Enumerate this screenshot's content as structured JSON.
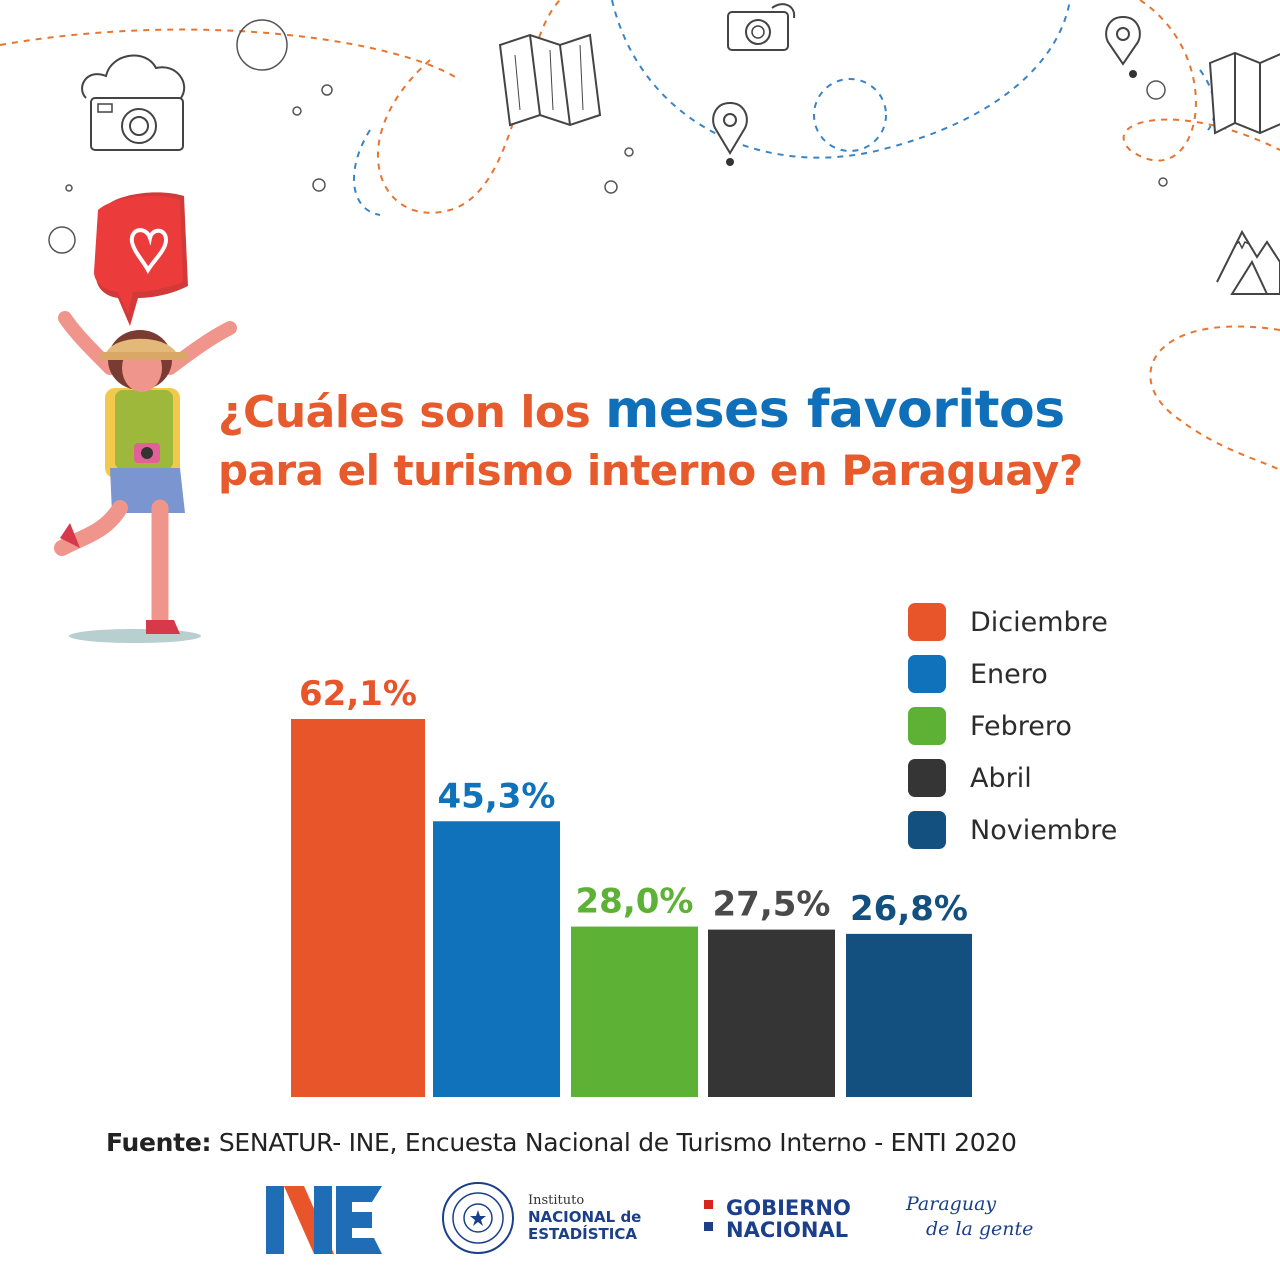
{
  "title": {
    "line1_prefix": "¿Cuáles son los ",
    "line1_highlight": "meses favoritos",
    "line2": "para el turismo interno en Paraguay?"
  },
  "chart_data": {
    "type": "bar",
    "categories": [
      "Diciembre",
      "Enero",
      "Febrero",
      "Abril",
      "Noviembre"
    ],
    "values": [
      62.1,
      45.3,
      28.0,
      27.5,
      26.8
    ],
    "data_labels": [
      "62,1%",
      "45,3%",
      "28,0%",
      "27,5%",
      "26,8%"
    ],
    "colors": [
      "#e8552a",
      "#0f72bb",
      "#5db134",
      "#353535",
      "#13507f"
    ],
    "label_colors": [
      "#e8552a",
      "#0f72bb",
      "#5db134",
      "#4a4a4a",
      "#13507f"
    ],
    "legend_position": "top-right",
    "grid": false,
    "ylim": [
      0,
      62.1
    ]
  },
  "source": {
    "label": "Fuente:",
    "text": " SENATUR- INE, Encuesta Nacional de Turismo Interno - ENTI 2020"
  },
  "logos": {
    "ine_seal_text": [
      "Instituto",
      "NACIONAL de",
      "ESTADÍSTICA"
    ],
    "gobierno": [
      "GOBIERNO",
      "NACIONAL"
    ],
    "paraguay": [
      "Paraguay",
      "de la gente"
    ]
  },
  "icons": [
    "camera-icon",
    "map-icon",
    "location-pin-icon",
    "heart-bubble-icon",
    "mountain-icon",
    "traveler-illustration"
  ]
}
